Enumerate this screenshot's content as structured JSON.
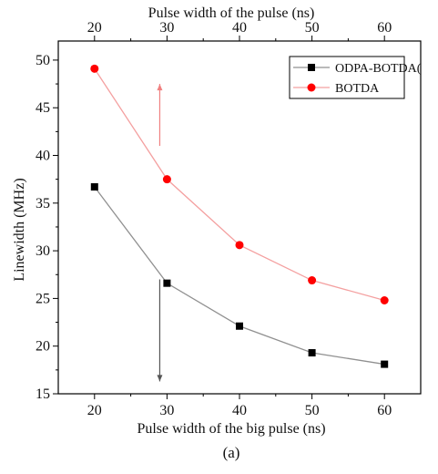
{
  "chart_data": {
    "type": "line",
    "title": "",
    "xlabel": "Pulse width of the big pulse (ns)",
    "x2label": "Pulse width of the pulse (ns)",
    "ylabel": "Linewidth (MHz)",
    "caption": "(a)",
    "x": [
      20,
      30,
      40,
      50,
      60
    ],
    "xlim": [
      15,
      65
    ],
    "ylim": [
      15,
      52
    ],
    "xticks": [
      "20",
      "30",
      "40",
      "50",
      "60"
    ],
    "yticks": [
      "15",
      "20",
      "25",
      "30",
      "35",
      "40",
      "45",
      "50"
    ],
    "legend_position": "top-right",
    "grid": false,
    "series": [
      {
        "name": "ODPA-BOTDA",
        "legend_label": "ODPA-BOTDA(",
        "values": [
          36.7,
          26.6,
          22.1,
          19.3,
          18.1
        ],
        "color": "#909090",
        "marker_color": "#000000",
        "marker": "square"
      },
      {
        "name": "BOTDA",
        "legend_label": "BOTDA",
        "values": [
          49.1,
          37.5,
          30.6,
          26.9,
          24.8
        ],
        "color": "#f4a0a0",
        "marker_color": "#ff0000",
        "marker": "circle"
      }
    ],
    "annotations": [
      {
        "type": "arrow",
        "direction": "up",
        "x": 29,
        "from": 41,
        "to": 47.5,
        "color": "#f08080"
      },
      {
        "type": "arrow",
        "direction": "down",
        "x": 29,
        "from": 27,
        "to": 16.3,
        "color": "#555555"
      }
    ]
  }
}
